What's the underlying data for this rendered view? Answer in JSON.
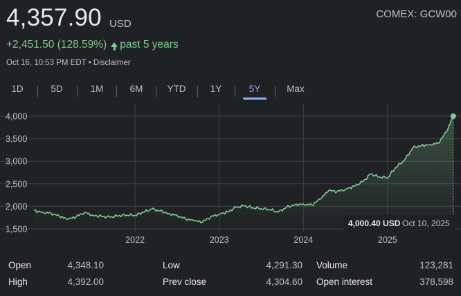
{
  "quote": {
    "price": "4,357.90",
    "currency": "USD",
    "ticker": "COMEX: GCW00",
    "change": "+2,451.50 (128.59%)",
    "period": "past 5 years",
    "timestamp": "Oct 16, 10:53 PM EDT",
    "separator": "•",
    "disclaimer": "Disclaimer"
  },
  "tabs": [
    "1D",
    "5D",
    "1M",
    "6M",
    "YTD",
    "1Y",
    "5Y",
    "Max"
  ],
  "active_tab": "5Y",
  "colors": {
    "accent": "#8ab4f8",
    "positive": "#81c995",
    "background": "#202124"
  },
  "tooltip": {
    "value": "4,000.40 USD",
    "date": "Oct 10, 2025"
  },
  "chart_data": {
    "type": "area",
    "title": "",
    "xlabel": "",
    "ylabel": "",
    "x_range": [
      2020.79,
      2025.79
    ],
    "ylim": [
      1500,
      4000
    ],
    "grid": true,
    "y_ticks": [
      1500,
      2000,
      2500,
      3000,
      3500,
      4000
    ],
    "y_tick_labels": [
      "1,500",
      "2,000",
      "2,500",
      "3,000",
      "3,500",
      "4,000"
    ],
    "x_ticks": [
      2022,
      2023,
      2024,
      2025
    ],
    "x_tick_labels": [
      "2022",
      "2023",
      "2024",
      "2025"
    ],
    "series": [
      {
        "x": [
          2020.8,
          2020.9,
          2021.0,
          2021.1,
          2021.2,
          2021.3,
          2021.4,
          2021.5,
          2021.6,
          2021.7,
          2021.8,
          2021.9,
          2022.0,
          2022.1,
          2022.2,
          2022.3,
          2022.4,
          2022.5,
          2022.6,
          2022.7,
          2022.8,
          2022.9,
          2023.0,
          2023.1,
          2023.2,
          2023.3,
          2023.4,
          2023.5,
          2023.6,
          2023.7,
          2023.8,
          2023.9,
          2024.0,
          2024.1,
          2024.2,
          2024.3,
          2024.4,
          2024.5,
          2024.6,
          2024.7,
          2024.8,
          2024.9,
          2025.0,
          2025.1,
          2025.2,
          2025.3,
          2025.4,
          2025.5,
          2025.6,
          2025.7,
          2025.78
        ],
        "values": [
          1910,
          1870,
          1850,
          1780,
          1710,
          1770,
          1870,
          1800,
          1780,
          1760,
          1790,
          1810,
          1800,
          1870,
          1940,
          1900,
          1840,
          1800,
          1720,
          1680,
          1650,
          1770,
          1830,
          1880,
          1980,
          2010,
          1970,
          1950,
          1930,
          1870,
          1980,
          2040,
          2050,
          2030,
          2160,
          2350,
          2330,
          2380,
          2450,
          2540,
          2720,
          2650,
          2640,
          2870,
          3020,
          3300,
          3350,
          3370,
          3400,
          3650,
          4000
        ]
      }
    ]
  },
  "stats": [
    {
      "label": "Open",
      "value": "4,348.10"
    },
    {
      "label": "Low",
      "value": "4,291.30"
    },
    {
      "label": "Volume",
      "value": "123,281"
    },
    {
      "label": "High",
      "value": "4,392.00"
    },
    {
      "label": "Prev close",
      "value": "4,304.60"
    },
    {
      "label": "Open interest",
      "value": "378,598"
    }
  ]
}
